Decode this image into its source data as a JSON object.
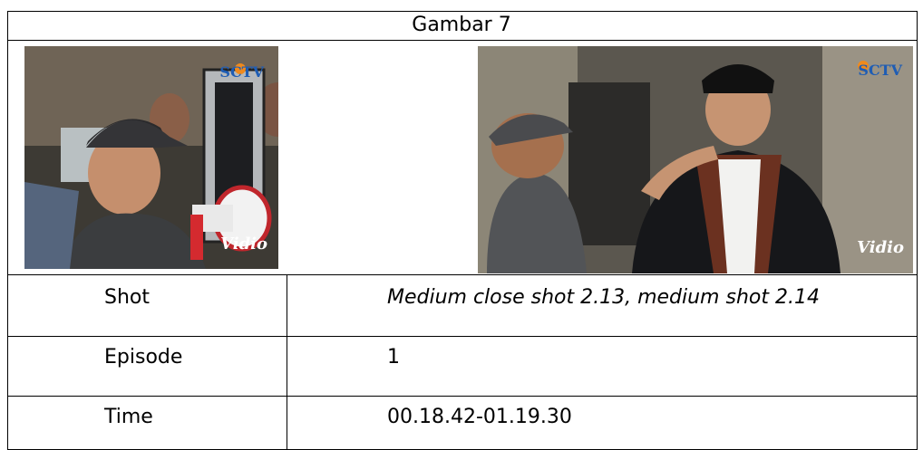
{
  "table": {
    "title": "Gambar 7",
    "images": [
      {
        "channel": "SCTV",
        "watermark": "Vidio"
      },
      {
        "channel": "SCTV",
        "watermark": "Vidio"
      }
    ],
    "rows": [
      [
        "Shot",
        "Medium close shot 2.13, medium shot 2.14"
      ],
      [
        "Episode",
        "1"
      ],
      [
        "Time",
        "00.18.42-01.19.30"
      ]
    ]
  }
}
